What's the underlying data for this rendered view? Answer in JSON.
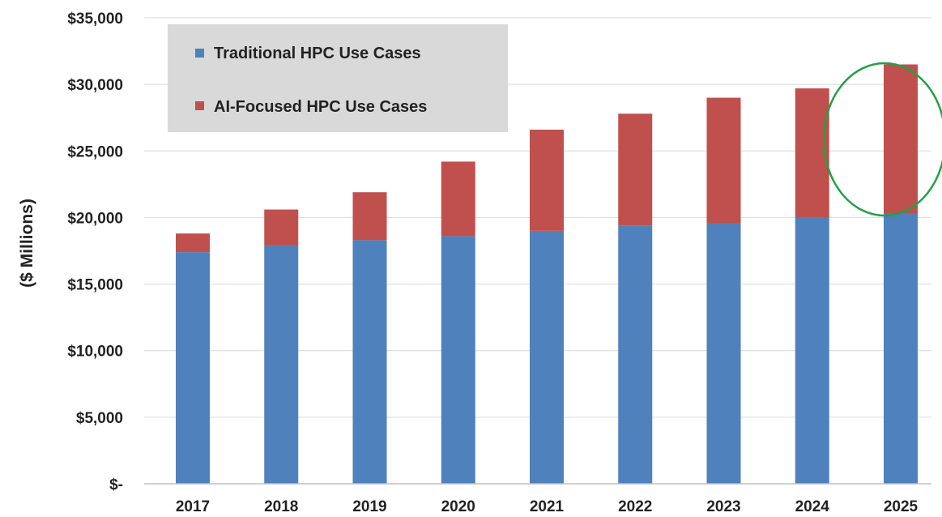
{
  "chart_data": {
    "type": "bar",
    "stacked": true,
    "title": "",
    "xlabel": "",
    "ylabel": "($ Millions)",
    "categories": [
      "2017",
      "2018",
      "2019",
      "2020",
      "2021",
      "2022",
      "2023",
      "2024",
      "2025"
    ],
    "series": [
      {
        "name": "Traditional HPC Use Cases",
        "color": "#4f81bd",
        "values": [
          17400,
          17900,
          18300,
          18600,
          19000,
          19400,
          19600,
          20000,
          20300
        ]
      },
      {
        "name": "AI-Focused HPC Use Cases",
        "color": "#c0504d",
        "values": [
          1400,
          2700,
          3600,
          5600,
          7600,
          8400,
          9400,
          9700,
          11200
        ]
      }
    ],
    "ylim": [
      0,
      35000
    ],
    "y_ticks": [
      0,
      5000,
      10000,
      15000,
      20000,
      25000,
      30000,
      35000
    ],
    "y_tick_labels": [
      "$-",
      "$5,000",
      "$10,000",
      "$15,000",
      "$20,000",
      "$25,000",
      "$30,000",
      "$35,000"
    ],
    "grid": true,
    "legend_position": "top-left",
    "annotation": {
      "shape": "ellipse",
      "highlights": "2025",
      "color": "#22a045"
    }
  }
}
